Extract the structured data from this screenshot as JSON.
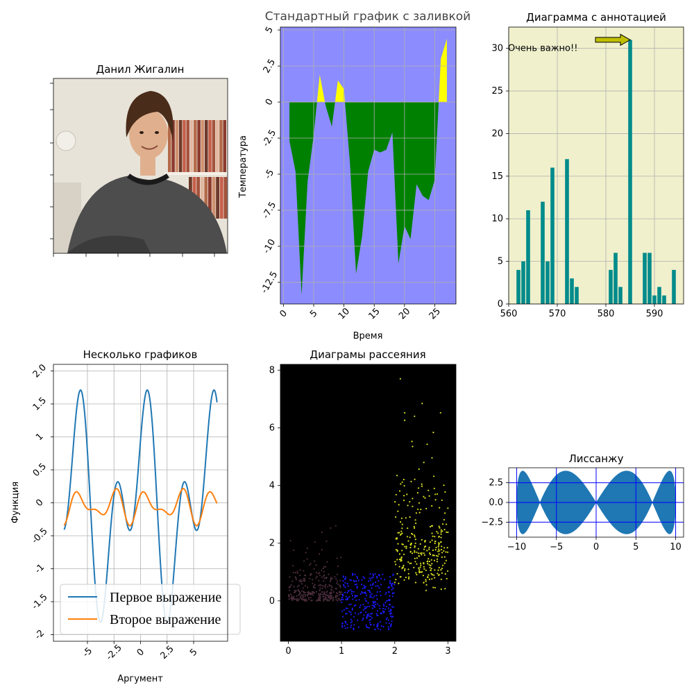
{
  "figure": {
    "background": "#ffffff"
  },
  "chart_data": [
    {
      "id": "photo",
      "type": "image",
      "title": "Данил Жигалин",
      "image_description_icon": "photo-portrait",
      "colors": {
        "wall": "#e8e3d9",
        "hair": "#4a2c1a",
        "hoodie": "#4d4d4d",
        "skin": "#e0b08e",
        "shelf": "#b36a4a"
      }
    },
    {
      "id": "fill",
      "type": "area",
      "title": "Стандартный график с заливкой",
      "xlabel": "Время",
      "ylabel": "Температура",
      "xlim": [
        -0.5,
        28.5
      ],
      "ylim": [
        -14,
        5.2
      ],
      "xticks": [
        0,
        5,
        10,
        15,
        20,
        25
      ],
      "xtick_labels": [
        "0",
        "5",
        "10",
        "15",
        "20",
        "25"
      ],
      "yticks": [
        5,
        2.5,
        0,
        -2.5,
        -5,
        -7.5,
        -10,
        -12.5
      ],
      "ytick_labels": [
        "5",
        "2.5",
        "0",
        "-2.5",
        "-5",
        "-7.5",
        "-10",
        "-12.5"
      ],
      "grid": true,
      "x": [
        1,
        2,
        3,
        4,
        5,
        6,
        7,
        8,
        9,
        10,
        11,
        12,
        13,
        14,
        15,
        16,
        17,
        18,
        19,
        20,
        21,
        22,
        23,
        24,
        25,
        26,
        27
      ],
      "values": [
        -2.7,
        -4.8,
        -13.4,
        -5.5,
        -2.3,
        1.9,
        -0.3,
        -1.7,
        1.5,
        0.9,
        -4.3,
        -11.9,
        -9.3,
        -4.8,
        -3.3,
        -3.5,
        -3.3,
        -2.1,
        -11.2,
        -8.6,
        -9.5,
        -5.7,
        -6.5,
        -6.8,
        -5.4,
        3.0,
        4.4
      ],
      "colors": {
        "background": "#8c8cff",
        "positive": "#ffff00",
        "negative": "#008000"
      }
    },
    {
      "id": "annot",
      "type": "bar",
      "title": "Диаграмма с аннотацией",
      "xlim": [
        560,
        596
      ],
      "ylim": [
        0,
        32.5
      ],
      "xticks": [
        560,
        570,
        580,
        590
      ],
      "yticks": [
        0,
        5,
        10,
        15,
        20,
        25,
        30
      ],
      "grid": true,
      "x": [
        562,
        563,
        564,
        567,
        568,
        569,
        572,
        573,
        574,
        581,
        582,
        583,
        585,
        588,
        589,
        590,
        591,
        592,
        594
      ],
      "values": [
        4,
        5,
        11,
        12,
        5,
        16,
        17,
        3,
        2,
        4,
        6,
        2,
        31,
        6,
        6,
        1,
        2,
        1,
        4
      ],
      "annotation": {
        "text": "Очень важно!!",
        "x": 585,
        "y": 31,
        "text_x": 562,
        "text_y": 30
      },
      "colors": {
        "background": "#f0f0cc",
        "bar": "#008b8b",
        "arrow": "#bfbf00"
      }
    },
    {
      "id": "multi",
      "type": "line",
      "title": "Несколько графиков",
      "xlabel": "Аргумент",
      "ylabel": "Функция",
      "xlim": [
        -8.2,
        8.2
      ],
      "ylim": [
        -2.1,
        2.1
      ],
      "xticks": [
        -5,
        -2.5,
        0,
        2.5,
        5
      ],
      "xtick_labels": [
        "-5",
        "-2.5",
        "0",
        "2.5",
        "5"
      ],
      "yticks": [
        2,
        1.5,
        1,
        0.5,
        0,
        -0.5,
        -1,
        -1.5,
        -2
      ],
      "ytick_labels": [
        "2.0",
        "1.5",
        "1",
        "0.5",
        "0",
        "-0.5",
        "-1",
        "-1.5",
        "-2"
      ],
      "grid": true,
      "legend": "lower-center",
      "series": [
        {
          "name": "Первое выражение",
          "color": "#1f77b4",
          "formula": "sin(2x)+cos(x)",
          "x_range": [
            -7.2,
            7.2
          ]
        },
        {
          "name": "Второе выражение",
          "color": "#ff7f0e",
          "formula": "0.1cos(x)+0.2sin(2x)+...",
          "x_range": [
            -7.2,
            7.2
          ]
        }
      ]
    },
    {
      "id": "scatter",
      "type": "scatter",
      "title": "Диаграмы рассеяния",
      "xlim": [
        -0.15,
        3.15
      ],
      "ylim": [
        -1.4,
        8.2
      ],
      "xticks": [
        0,
        1,
        2,
        3
      ],
      "yticks": [
        0,
        2,
        4,
        6,
        8
      ],
      "grid": false,
      "series": [
        {
          "name": "",
          "color": "#4b2d3c",
          "x_range": [
            0,
            1
          ],
          "distribution": "exponential",
          "y_min": 0,
          "count": 300
        },
        {
          "name": "",
          "color": "#1a1aff",
          "x_range": [
            1,
            2
          ],
          "distribution": "uniform",
          "y_range": [
            -1,
            1
          ],
          "count": 300
        },
        {
          "name": "",
          "color": "#d9e021",
          "x_range": [
            2,
            3
          ],
          "distribution": "lognormal",
          "y_min": 0,
          "count": 300
        }
      ],
      "colors": {
        "background": "#000000"
      }
    },
    {
      "id": "lissajous",
      "type": "area",
      "title": "Лиссанжу",
      "xlim": [
        -11,
        11
      ],
      "ylim": [
        -4.4,
        4.4
      ],
      "xticks": [
        -10,
        -5,
        0,
        5,
        10
      ],
      "yticks": [
        2.5,
        0,
        -2.5
      ],
      "ytick_labels": [
        "2.5",
        "0.0",
        "−2.5"
      ],
      "xtick_labels": [
        "−10",
        "−5",
        "0",
        "5",
        "10"
      ],
      "grid": true,
      "curve": {
        "x_amplitude": 10,
        "y_amplitude": 4,
        "x_freq": 1,
        "y_freq": 4
      },
      "colors": {
        "fill": "#1f77b4",
        "grid": "#0000ff"
      }
    }
  ]
}
